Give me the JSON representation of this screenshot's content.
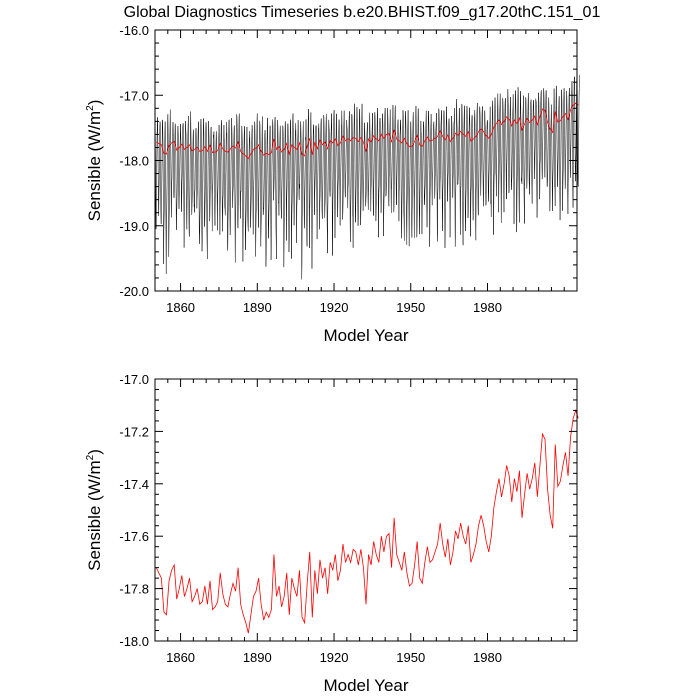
{
  "figure": {
    "title": "Global Diagnostics Timeseries b.e20.BHIST.f09_g17.20thC.151_01"
  },
  "chart_data": [
    {
      "type": "line",
      "title": "Global Diagnostics Timeseries b.e20.BHIST.f09_g17.20thC.151_01",
      "xlabel": "Model Year",
      "ylabel_main": "Sensible (W/m",
      "ylabel_sup": "2",
      "ylabel_close": ")",
      "xlim": [
        1850,
        2015
      ],
      "ylim": [
        -20.0,
        -16.0
      ],
      "xticks": [
        1860,
        1890,
        1920,
        1950,
        1980
      ],
      "xtick_labels": [
        "1860",
        "1890",
        "1920",
        "1950",
        "1980"
      ],
      "yticks": [
        -20.0,
        -19.0,
        -18.0,
        -17.0,
        -16.0
      ],
      "ytick_labels": [
        "-20.0",
        "-19.0",
        "-18.0",
        "-17.0",
        "-16.0"
      ],
      "grid": false,
      "colors": {
        "monthly": "#000000",
        "annual": "#ff0000"
      },
      "series": [
        {
          "kind": "monthly",
          "resolution": "monthly",
          "annual_cycle_max_offset": 0.35,
          "annual_cycle_min_offset": -1.15,
          "follows_series": "annual"
        },
        {
          "kind": "annual",
          "resolution": "annual",
          "same_values_as": "panel-2"
        }
      ]
    },
    {
      "type": "line",
      "xlabel": "Model Year",
      "ylabel_main": "Sensible (W/m",
      "ylabel_sup": "2",
      "ylabel_close": ")",
      "xlim": [
        1850,
        2015
      ],
      "ylim": [
        -18.0,
        -17.0
      ],
      "xticks": [
        1860,
        1890,
        1920,
        1950,
        1980
      ],
      "xtick_labels": [
        "1860",
        "1890",
        "1920",
        "1950",
        "1980"
      ],
      "yticks": [
        -18.0,
        -17.8,
        -17.6,
        -17.4,
        -17.2,
        -17.0
      ],
      "ytick_labels": [
        "-18.0",
        "-17.8",
        "-17.6",
        "-17.4",
        "-17.2",
        "-17.0"
      ],
      "grid": false,
      "colors": {
        "annual": "#ff0000"
      },
      "series": [
        {
          "kind": "annual",
          "x_start": 1850,
          "x_step": 1,
          "values": [
            -17.72,
            -17.74,
            -17.76,
            -17.89,
            -17.9,
            -17.77,
            -17.73,
            -17.71,
            -17.84,
            -17.8,
            -17.75,
            -17.83,
            -17.8,
            -17.76,
            -17.85,
            -17.83,
            -17.8,
            -17.86,
            -17.85,
            -17.79,
            -17.86,
            -17.77,
            -17.88,
            -17.87,
            -17.85,
            -17.74,
            -17.82,
            -17.86,
            -17.87,
            -17.82,
            -17.78,
            -17.81,
            -17.72,
            -17.86,
            -17.9,
            -17.93,
            -17.97,
            -17.9,
            -17.83,
            -17.81,
            -17.76,
            -17.86,
            -17.92,
            -17.89,
            -17.91,
            -17.88,
            -17.67,
            -17.83,
            -17.79,
            -17.87,
            -17.83,
            -17.74,
            -17.9,
            -17.76,
            -17.8,
            -17.83,
            -17.73,
            -17.91,
            -17.93,
            -17.78,
            -17.66,
            -17.91,
            -17.73,
            -17.82,
            -17.69,
            -17.76,
            -17.72,
            -17.82,
            -17.7,
            -17.73,
            -17.67,
            -17.77,
            -17.73,
            -17.63,
            -17.7,
            -17.67,
            -17.7,
            -17.65,
            -17.66,
            -17.71,
            -17.65,
            -17.72,
            -17.86,
            -17.67,
            -17.71,
            -17.62,
            -17.67,
            -17.7,
            -17.6,
            -17.66,
            -17.6,
            -17.59,
            -17.72,
            -17.53,
            -17.67,
            -17.7,
            -17.73,
            -17.66,
            -17.74,
            -17.79,
            -17.78,
            -17.71,
            -17.62,
            -17.76,
            -17.78,
            -17.7,
            -17.64,
            -17.7,
            -17.69,
            -17.66,
            -17.63,
            -17.55,
            -17.63,
            -17.68,
            -17.61,
            -17.71,
            -17.66,
            -17.58,
            -17.61,
            -17.55,
            -17.6,
            -17.63,
            -17.56,
            -17.7,
            -17.67,
            -17.63,
            -17.56,
            -17.52,
            -17.56,
            -17.62,
            -17.66,
            -17.6,
            -17.49,
            -17.43,
            -17.38,
            -17.45,
            -17.4,
            -17.33,
            -17.37,
            -17.47,
            -17.38,
            -17.43,
            -17.35,
            -17.53,
            -17.44,
            -17.36,
            -17.42,
            -17.38,
            -17.32,
            -17.45,
            -17.33,
            -17.21,
            -17.23,
            -17.42,
            -17.52,
            -17.57,
            -17.25,
            -17.41,
            -17.39,
            -17.33,
            -17.28,
            -17.37,
            -17.22,
            -17.15,
            -17.12,
            -17.15
          ]
        }
      ]
    }
  ]
}
